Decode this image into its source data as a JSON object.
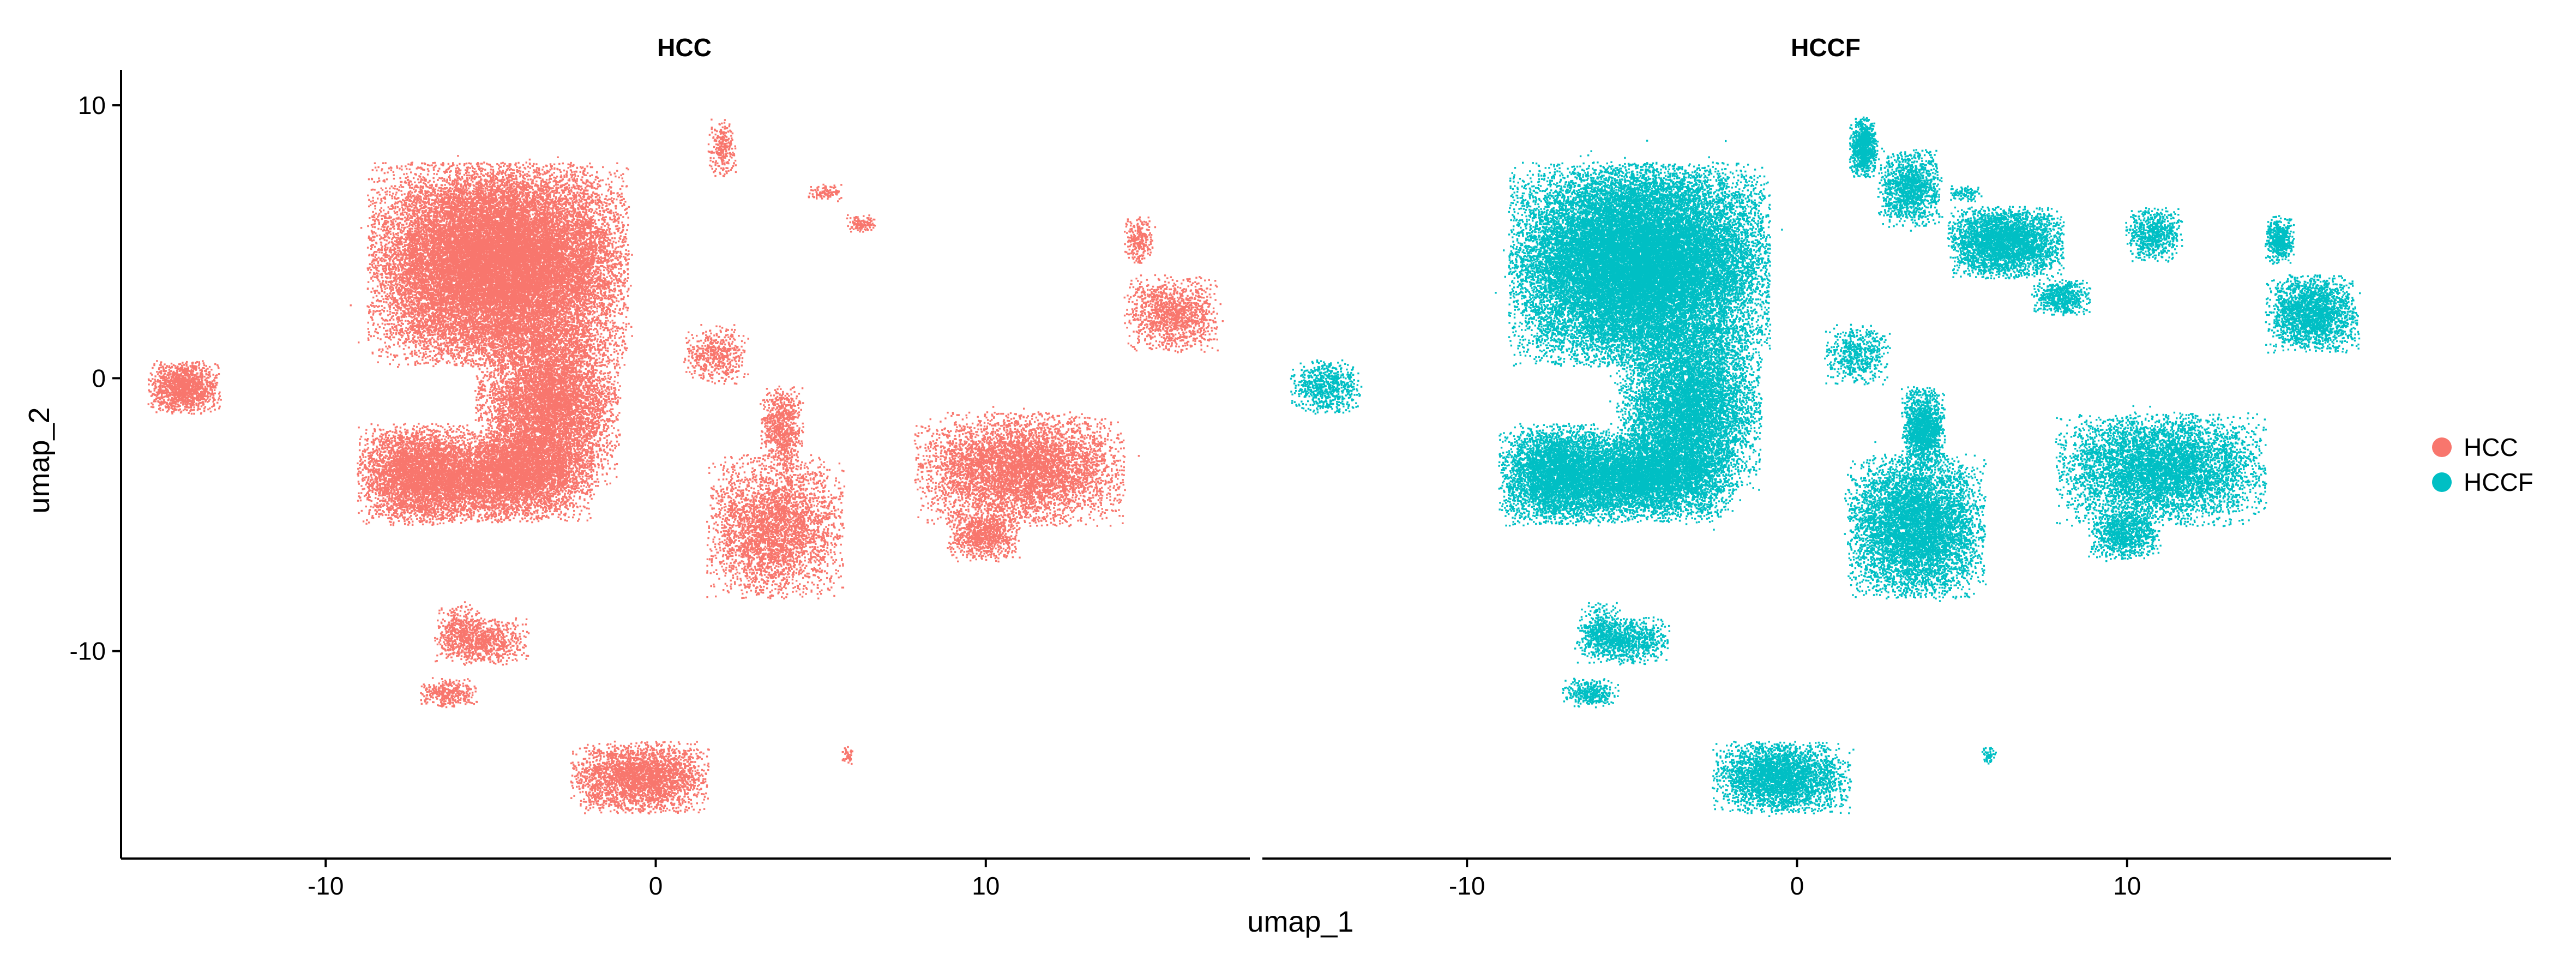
{
  "chart_data": {
    "type": "scatter",
    "xlabel": "umap_1",
    "ylabel": "umap_2",
    "facets": [
      {
        "title": "HCC",
        "color": "#F8766D"
      },
      {
        "title": "HCCF",
        "color": "#00BFC4"
      }
    ],
    "xlim": [
      -16.2,
      18.0
    ],
    "ylim": [
      -17.6,
      11.3
    ],
    "x_ticks": [
      -10,
      0,
      10
    ],
    "y_ticks": [
      10,
      0,
      -10
    ],
    "x_tick_labels": [
      "-10",
      "0",
      "10"
    ],
    "y_tick_labels": [
      "10",
      "0",
      "-10"
    ],
    "grid": false,
    "legend": {
      "position": "right",
      "entries": [
        {
          "label": "HCC",
          "color": "#F8766D"
        },
        {
          "label": "HCCF",
          "color": "#00BFC4"
        }
      ]
    },
    "clusters": [
      {
        "cx": -14.3,
        "cy": -0.3,
        "rx": 1.0,
        "ry": 0.9,
        "n_HCC": 1400,
        "n_HCCF": 700
      },
      {
        "cx": -4.8,
        "cy": 4.2,
        "rx": 3.6,
        "ry": 3.4,
        "n_HCC": 24000,
        "n_HCCF": 26000
      },
      {
        "cx": -3.3,
        "cy": -1.0,
        "rx": 2.0,
        "ry": 2.8,
        "n_HCC": 7000,
        "n_HCCF": 7500
      },
      {
        "cx": -7.3,
        "cy": -3.5,
        "rx": 1.6,
        "ry": 1.7,
        "n_HCC": 4000,
        "n_HCCF": 4500
      },
      {
        "cx": -4.6,
        "cy": -3.6,
        "rx": 2.4,
        "ry": 1.5,
        "n_HCC": 5500,
        "n_HCCF": 6000
      },
      {
        "cx": 3.6,
        "cy": -5.4,
        "rx": 1.9,
        "ry": 2.4,
        "n_HCC": 3500,
        "n_HCCF": 6500
      },
      {
        "cx": 3.8,
        "cy": -1.8,
        "rx": 0.6,
        "ry": 1.4,
        "n_HCC": 800,
        "n_HCCF": 1500
      },
      {
        "cx": 11.0,
        "cy": -3.3,
        "rx": 2.9,
        "ry": 1.9,
        "n_HCC": 5500,
        "n_HCCF": 6000
      },
      {
        "cx": 9.9,
        "cy": -5.7,
        "rx": 1.0,
        "ry": 0.9,
        "n_HCC": 900,
        "n_HCCF": 1000
      },
      {
        "cx": -0.5,
        "cy": -14.6,
        "rx": 1.9,
        "ry": 1.2,
        "n_HCC": 3000,
        "n_HCCF": 3200
      },
      {
        "cx": -5.3,
        "cy": -9.6,
        "rx": 1.3,
        "ry": 0.8,
        "n_HCC": 900,
        "n_HCCF": 1000
      },
      {
        "cx": -6.3,
        "cy": -11.5,
        "rx": 0.8,
        "ry": 0.5,
        "n_HCC": 350,
        "n_HCCF": 350
      },
      {
        "cx": -6.0,
        "cy": -9.1,
        "rx": 0.6,
        "ry": 0.9,
        "n_HCC": 250,
        "n_HCCF": 250
      },
      {
        "cx": 1.8,
        "cy": 0.9,
        "rx": 0.9,
        "ry": 1.0,
        "n_HCC": 500,
        "n_HCCF": 600
      },
      {
        "cx": 2.0,
        "cy": 8.5,
        "rx": 0.4,
        "ry": 1.0,
        "n_HCC": 250,
        "n_HCCF": 900
      },
      {
        "cx": 5.1,
        "cy": 6.8,
        "rx": 0.5,
        "ry": 0.3,
        "n_HCC": 100,
        "n_HCCF": 100
      },
      {
        "cx": 6.2,
        "cy": 5.7,
        "rx": 0.4,
        "ry": 0.3,
        "n_HCC": 120,
        "n_HCCF": 0
      },
      {
        "cx": 15.6,
        "cy": 2.4,
        "rx": 1.3,
        "ry": 1.3,
        "n_HCC": 1300,
        "n_HCCF": 2200
      },
      {
        "cx": 14.6,
        "cy": 5.1,
        "rx": 0.4,
        "ry": 0.8,
        "n_HCC": 250,
        "n_HCCF": 500
      },
      {
        "cx": 5.8,
        "cy": -13.8,
        "rx": 0.2,
        "ry": 0.3,
        "n_HCC": 40,
        "n_HCCF": 50
      },
      {
        "cx": 6.3,
        "cy": 5.0,
        "rx": 1.6,
        "ry": 1.2,
        "n_HCC": 0,
        "n_HCCF": 3500
      },
      {
        "cx": 3.4,
        "cy": 7.0,
        "rx": 0.9,
        "ry": 1.3,
        "n_HCC": 0,
        "n_HCCF": 1300
      },
      {
        "cx": 10.8,
        "cy": 5.3,
        "rx": 0.8,
        "ry": 0.9,
        "n_HCC": 0,
        "n_HCCF": 700
      },
      {
        "cx": 8.0,
        "cy": 3.0,
        "rx": 0.8,
        "ry": 0.6,
        "n_HCC": 0,
        "n_HCCF": 600
      }
    ]
  }
}
